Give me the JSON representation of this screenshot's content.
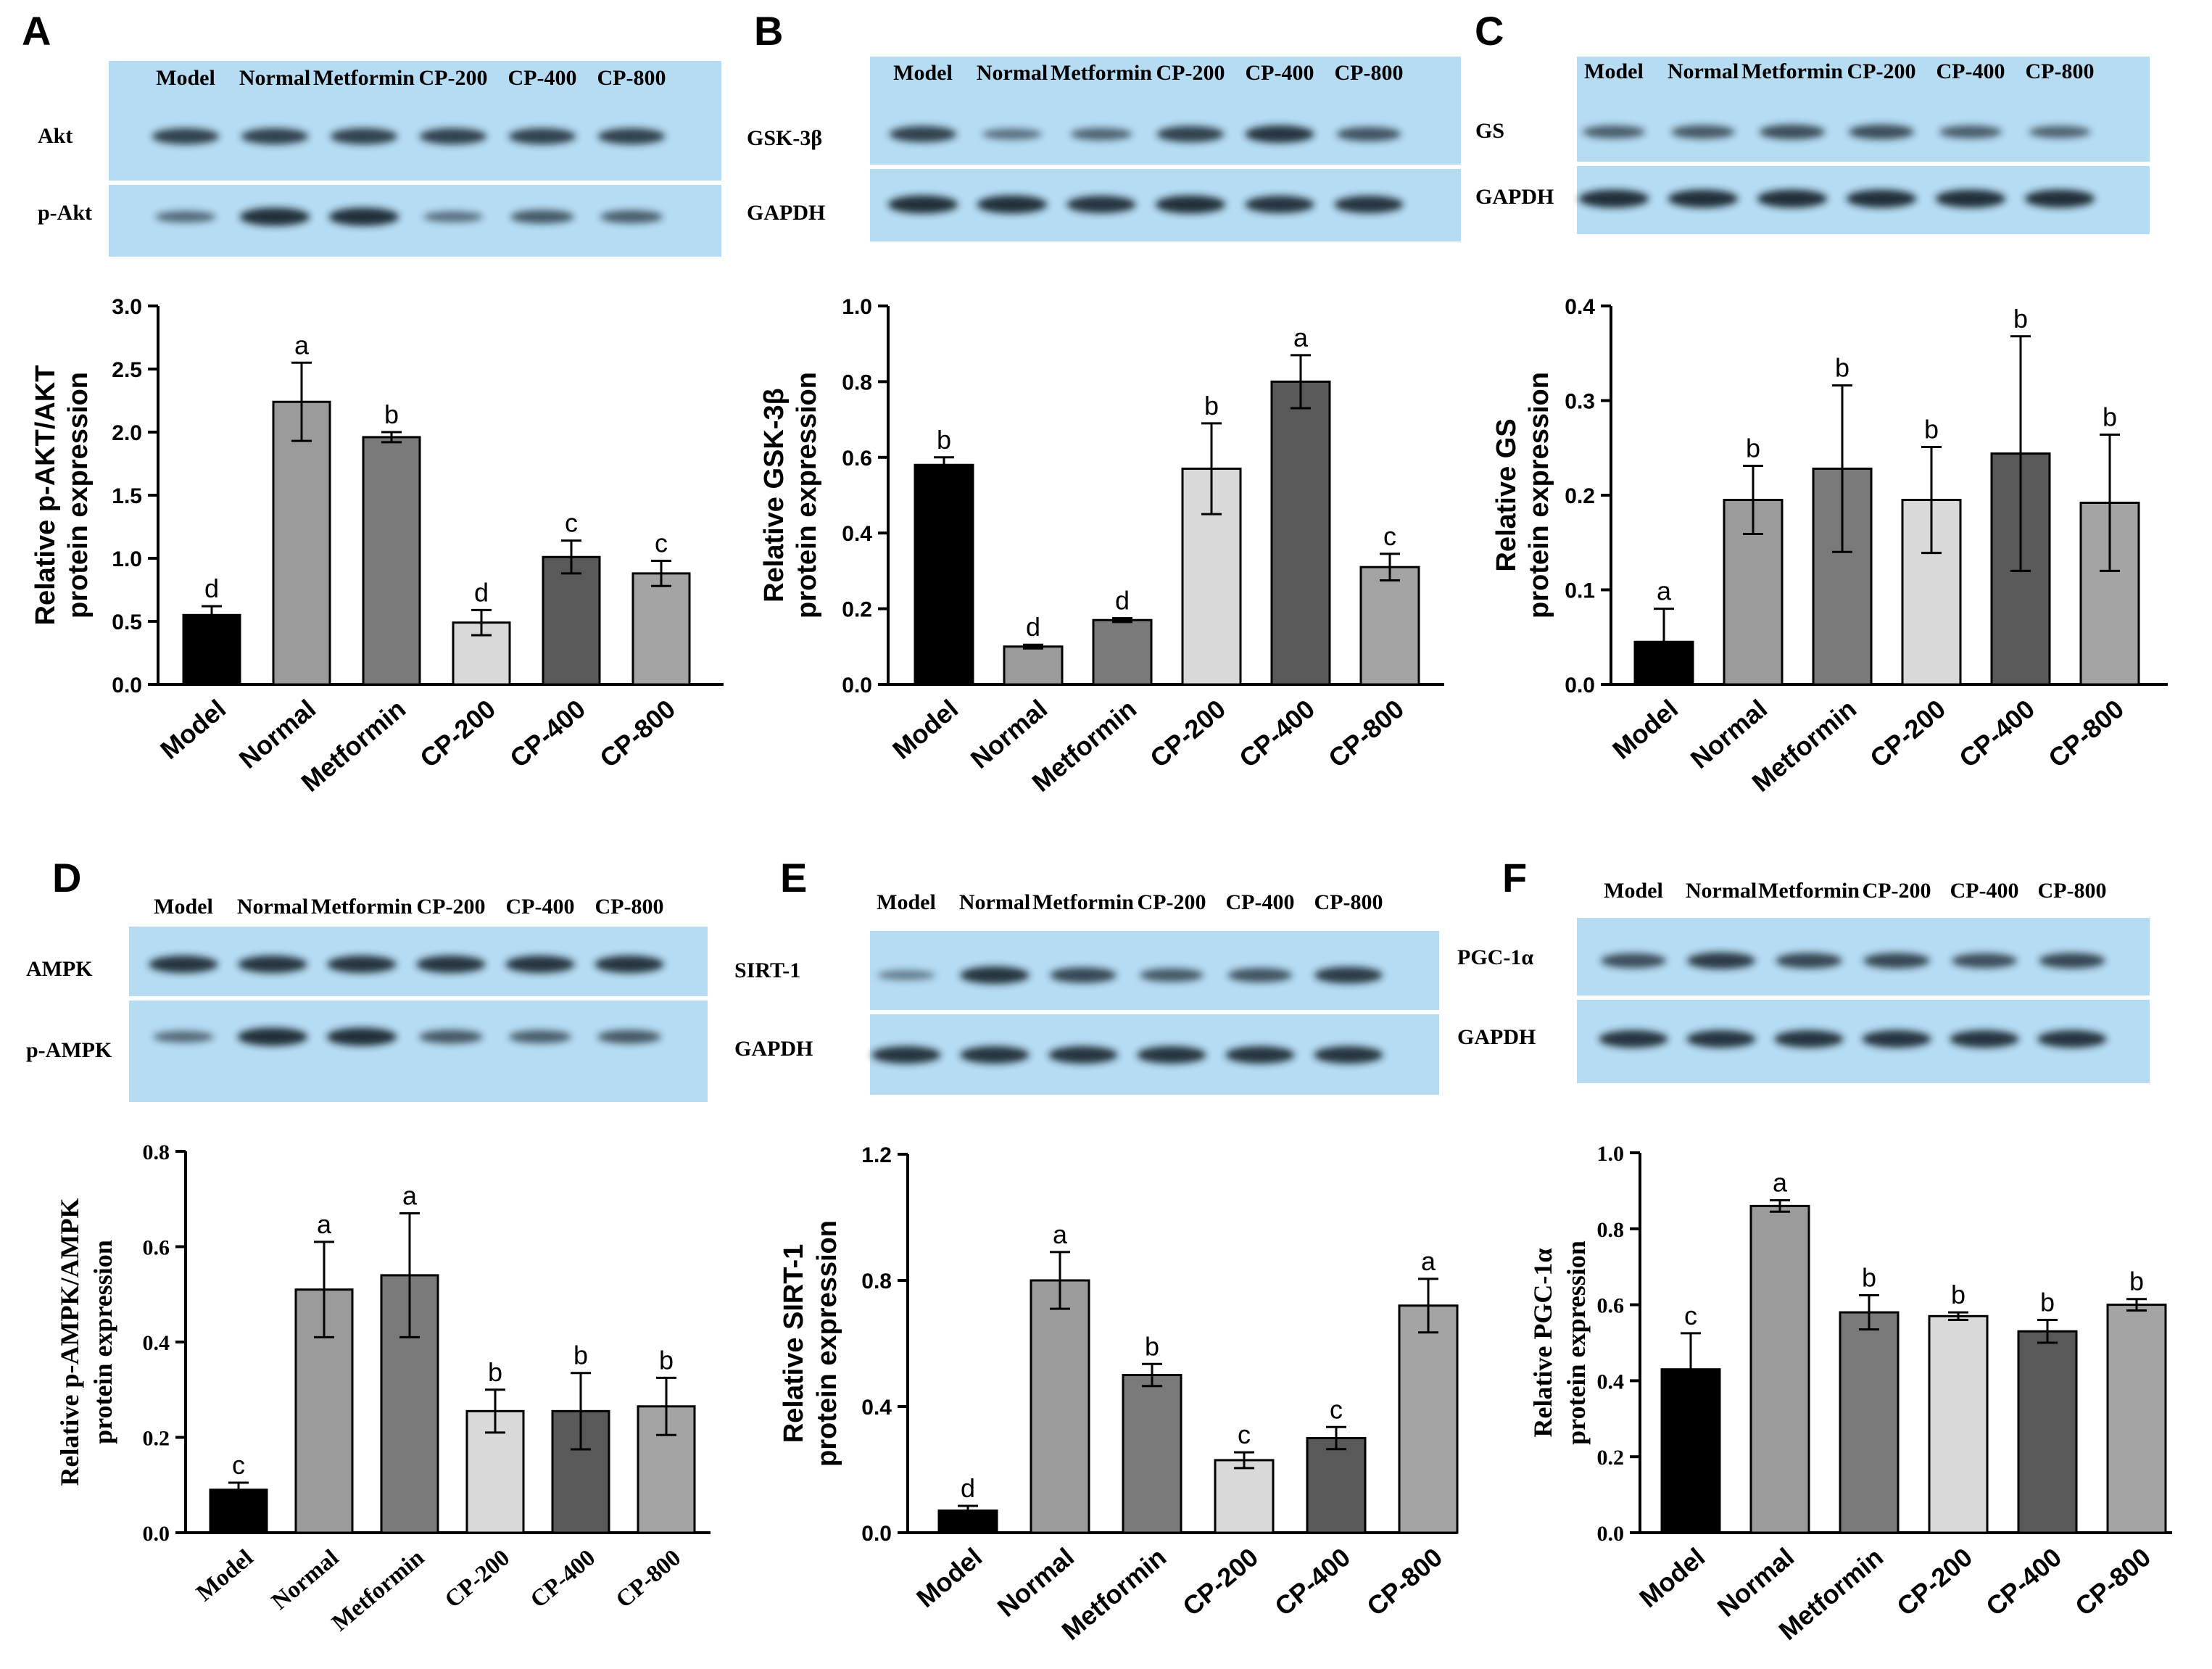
{
  "colors": {
    "model": "#000000",
    "normal": "#9b9b9b",
    "metformin": "#7a7a7a",
    "cp200": "#d9d9d9",
    "cp400": "#595959",
    "cp800": "#a4a4a4",
    "membrane": "#b6dcf3",
    "band": "#1d2a34"
  },
  "chart_data": [
    {
      "panel": "A",
      "type": "bar",
      "title": "",
      "ylabel_lines": [
        "Relative p-AKT/AKT",
        "protein expression"
      ],
      "xlabel": "",
      "categories": [
        "Model",
        "Normal",
        "Metformin",
        "CP-200",
        "CP-400",
        "CP-800"
      ],
      "values": [
        0.55,
        2.24,
        1.96,
        0.49,
        1.01,
        0.88
      ],
      "errors": [
        0.07,
        0.31,
        0.04,
        0.1,
        0.13,
        0.1
      ],
      "letters": [
        "d",
        "a",
        "b",
        "d",
        "c",
        "c"
      ],
      "ylim": [
        0,
        3.0
      ],
      "ticks": [
        0,
        0.5,
        1.0,
        1.5,
        2.0,
        2.5,
        3.0
      ],
      "tick_labels": [
        "0.0",
        "0.5",
        "1.0",
        "1.5",
        "2.0",
        "2.5",
        "3.0"
      ],
      "blot": {
        "lanes": [
          "Model",
          "Normal",
          "Metformin",
          "CP-200",
          "CP-400",
          "CP-800"
        ],
        "rows": [
          {
            "label": "Akt",
            "intensity": [
              0.8,
              0.8,
              0.8,
              0.8,
              0.8,
              0.8
            ]
          },
          {
            "label": "p-Akt",
            "intensity": [
              0.45,
              0.95,
              0.95,
              0.4,
              0.6,
              0.55
            ]
          }
        ]
      }
    },
    {
      "panel": "B",
      "type": "bar",
      "title": "",
      "ylabel_lines": [
        "Relative GSK-3β",
        "protein expression"
      ],
      "xlabel": "",
      "categories": [
        "Model",
        "Normal",
        "Metformin",
        "CP-200",
        "CP-400",
        "CP-800"
      ],
      "values": [
        0.58,
        0.1,
        0.17,
        0.57,
        0.8,
        0.31
      ],
      "errors": [
        0.02,
        0.005,
        0.005,
        0.12,
        0.07,
        0.035
      ],
      "letters": [
        "b",
        "d",
        "d",
        "b",
        "a",
        "c"
      ],
      "ylim": [
        0,
        1.0
      ],
      "ticks": [
        0,
        0.2,
        0.4,
        0.6,
        0.8,
        1.0
      ],
      "tick_labels": [
        "0.0",
        "0.2",
        "0.4",
        "0.6",
        "0.8",
        "1.0"
      ],
      "blot": {
        "lanes": [
          "Model",
          "Normal",
          "Metformin",
          "CP-200",
          "CP-400",
          "CP-800"
        ],
        "rows": [
          {
            "label": "GSK-3β",
            "intensity": [
              0.8,
              0.4,
              0.5,
              0.8,
              0.9,
              0.65
            ]
          },
          {
            "label": "GAPDH",
            "intensity": [
              0.95,
              0.95,
              0.9,
              0.95,
              0.9,
              0.9
            ]
          }
        ]
      }
    },
    {
      "panel": "C",
      "type": "bar",
      "title": "",
      "ylabel_lines": [
        "Relative GS",
        "protein expression"
      ],
      "xlabel": "",
      "categories": [
        "Model",
        "Normal",
        "Metformin",
        "CP-200",
        "CP-400",
        "CP-800"
      ],
      "values": [
        0.045,
        0.195,
        0.228,
        0.195,
        0.244,
        0.192
      ],
      "errors": [
        0.035,
        0.036,
        0.088,
        0.056,
        0.124,
        0.072
      ],
      "letters": [
        "a",
        "b",
        "b",
        "b",
        "b",
        "b"
      ],
      "ylim": [
        0,
        0.4
      ],
      "ticks": [
        0,
        0.1,
        0.2,
        0.3,
        0.4
      ],
      "tick_labels": [
        "0.0",
        "0.1",
        "0.2",
        "0.3",
        "0.4"
      ],
      "blot": {
        "lanes": [
          "Model",
          "Normal",
          "Metformin",
          "CP-200",
          "CP-400",
          "CP-800"
        ],
        "rows": [
          {
            "label": "GS",
            "intensity": [
              0.55,
              0.6,
              0.7,
              0.7,
              0.55,
              0.5
            ]
          },
          {
            "label": "GAPDH",
            "intensity": [
              0.95,
              0.95,
              0.95,
              0.95,
              0.95,
              0.95
            ]
          }
        ]
      }
    },
    {
      "panel": "D",
      "type": "bar",
      "title": "",
      "ylabel_lines": [
        "Relative p-AMPK/AMPK",
        "protein expression"
      ],
      "xlabel": "",
      "categories": [
        "Model",
        "Normal",
        "Metformin",
        "CP-200",
        "CP-400",
        "CP-800"
      ],
      "values": [
        0.09,
        0.51,
        0.54,
        0.255,
        0.255,
        0.265
      ],
      "errors": [
        0.015,
        0.1,
        0.13,
        0.045,
        0.08,
        0.06
      ],
      "letters": [
        "c",
        "a",
        "a",
        "b",
        "b",
        "b"
      ],
      "ylim": [
        0,
        0.8
      ],
      "ticks": [
        0,
        0.2,
        0.4,
        0.6,
        0.8
      ],
      "tick_labels": [
        "0.0",
        "0.2",
        "0.4",
        "0.6",
        "0.8"
      ],
      "blot": {
        "lanes": [
          "Model",
          "Normal",
          "Metformin",
          "CP-200",
          "CP-400",
          "CP-800"
        ],
        "rows": [
          {
            "label": "AMPK",
            "intensity": [
              0.9,
              0.9,
              0.9,
              0.9,
              0.9,
              0.9
            ]
          },
          {
            "label": "p-AMPK",
            "intensity": [
              0.45,
              0.95,
              0.95,
              0.6,
              0.55,
              0.6
            ]
          }
        ]
      }
    },
    {
      "panel": "E",
      "type": "bar",
      "title": "",
      "ylabel_lines": [
        "Relative SIRT-1",
        "protein expression"
      ],
      "xlabel": "",
      "categories": [
        "Model",
        "Normal",
        "Metformin",
        "CP-200",
        "CP-400",
        "CP-800"
      ],
      "values": [
        0.07,
        0.8,
        0.5,
        0.23,
        0.3,
        0.72
      ],
      "errors": [
        0.015,
        0.09,
        0.035,
        0.025,
        0.035,
        0.085
      ],
      "letters": [
        "d",
        "a",
        "b",
        "c",
        "c",
        "a"
      ],
      "ylim": [
        0,
        1.2
      ],
      "ticks": [
        0,
        0.4,
        0.8,
        1.2
      ],
      "tick_labels": [
        "0.0",
        "0.4",
        "0.8",
        "1.2"
      ],
      "blot": {
        "lanes": [
          "Model",
          "Normal",
          "Metformin",
          "CP-200",
          "CP-400",
          "CP-800"
        ],
        "rows": [
          {
            "label": "SIRT-1",
            "intensity": [
              0.3,
              0.9,
              0.75,
              0.6,
              0.65,
              0.85
            ]
          },
          {
            "label": "GAPDH",
            "intensity": [
              0.9,
              0.9,
              0.9,
              0.9,
              0.9,
              0.9
            ]
          }
        ]
      }
    },
    {
      "panel": "F",
      "type": "bar",
      "title": "",
      "ylabel_lines": [
        "Relative PGC-1α",
        "protein expression"
      ],
      "xlabel": "",
      "categories": [
        "Model",
        "Normal",
        "Metformin",
        "CP-200",
        "CP-400",
        "CP-800"
      ],
      "values": [
        0.43,
        0.86,
        0.58,
        0.57,
        0.53,
        0.6
      ],
      "errors": [
        0.095,
        0.015,
        0.045,
        0.01,
        0.03,
        0.015
      ],
      "letters": [
        "c",
        "a",
        "b",
        "b",
        "b",
        "b"
      ],
      "ylim": [
        0,
        1.0
      ],
      "ticks": [
        0,
        0.2,
        0.4,
        0.6,
        0.8,
        1.0
      ],
      "tick_labels": [
        "0.0",
        "0.2",
        "0.4",
        "0.6",
        "0.8",
        "1.0"
      ],
      "blot": {
        "lanes": [
          "Model",
          "Normal",
          "Metformin",
          "CP-200",
          "CP-400",
          "CP-800"
        ],
        "rows": [
          {
            "label": "PGC-1α",
            "intensity": [
              0.7,
              0.85,
              0.75,
              0.75,
              0.7,
              0.75
            ]
          },
          {
            "label": "GAPDH",
            "intensity": [
              0.9,
              0.9,
              0.9,
              0.9,
              0.9,
              0.9
            ]
          }
        ]
      }
    }
  ]
}
